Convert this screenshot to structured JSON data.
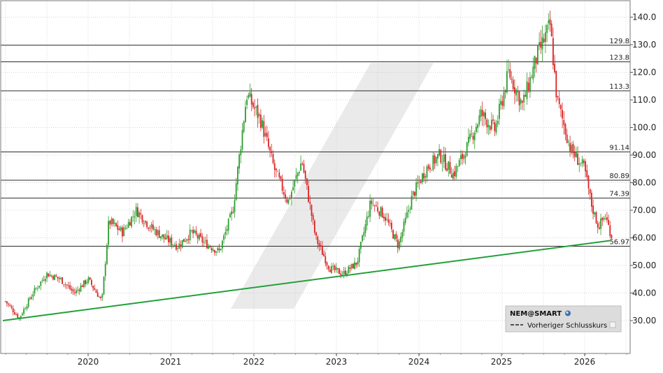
{
  "chart_data": {
    "type": "candlestick",
    "symbol": "NEM@SMART",
    "legend": {
      "title": "NEM@SMART",
      "entries": [
        "Vorheriger Schlusskurs"
      ]
    },
    "x_axis": {
      "ticks": [
        "2020",
        "2021",
        "2022",
        "2023",
        "2024",
        "2025",
        "2026"
      ]
    },
    "y_axis": {
      "range": [
        20,
        142
      ],
      "ticks": [
        "30.00",
        "40.00",
        "50.00",
        "60.00",
        "70.00",
        "80.00",
        "90.00",
        "100.0",
        "110.0",
        "120.0",
        "130.0",
        "140.0"
      ],
      "tick_values": [
        30,
        40,
        50,
        60,
        70,
        80,
        90,
        100,
        110,
        120,
        130,
        140
      ]
    },
    "horizontal_levels": [
      {
        "value": 129.8,
        "label": "129.8"
      },
      {
        "value": 123.8,
        "label": "123.8"
      },
      {
        "value": 113.3,
        "label": "113.3"
      },
      {
        "value": 91.14,
        "label": "91.14"
      },
      {
        "value": 80.89,
        "label": "80.89"
      },
      {
        "value": 74.39,
        "label": "74.39"
      },
      {
        "value": 56.97,
        "label": "56.97"
      }
    ],
    "trendline": {
      "start": {
        "date": "2019-01",
        "value": 30
      },
      "end": {
        "date": "2026-05",
        "value": 59
      }
    },
    "price_path": [
      [
        "2019-01",
        37
      ],
      [
        "2019-03",
        31
      ],
      [
        "2019-05",
        40
      ],
      [
        "2019-07",
        47
      ],
      [
        "2019-09",
        45
      ],
      [
        "2019-11",
        40
      ],
      [
        "2020-01",
        45
      ],
      [
        "2020-03",
        37
      ],
      [
        "2020-04",
        66
      ],
      [
        "2020-06",
        62
      ],
      [
        "2020-08",
        70
      ],
      [
        "2020-10",
        64
      ],
      [
        "2020-12",
        60
      ],
      [
        "2021-02",
        57
      ],
      [
        "2021-04",
        62
      ],
      [
        "2021-06",
        58
      ],
      [
        "2021-08",
        55
      ],
      [
        "2021-10",
        70
      ],
      [
        "2021-12",
        112
      ],
      [
        "2022-02",
        103
      ],
      [
        "2022-04",
        85
      ],
      [
        "2022-06",
        73
      ],
      [
        "2022-08",
        88
      ],
      [
        "2022-10",
        60
      ],
      [
        "2022-12",
        49
      ],
      [
        "2023-02",
        47
      ],
      [
        "2023-04",
        51
      ],
      [
        "2023-06",
        73
      ],
      [
        "2023-08",
        68
      ],
      [
        "2023-10",
        57
      ],
      [
        "2023-12",
        75
      ],
      [
        "2024-02",
        85
      ],
      [
        "2024-04",
        90
      ],
      [
        "2024-06",
        83
      ],
      [
        "2024-08",
        93
      ],
      [
        "2024-10",
        105
      ],
      [
        "2024-12",
        99
      ],
      [
        "2025-02",
        120
      ],
      [
        "2025-04",
        108
      ],
      [
        "2025-06",
        125
      ],
      [
        "2025-08",
        137
      ],
      [
        "2025-09",
        110
      ],
      [
        "2025-11",
        92
      ],
      [
        "2026-01",
        85
      ],
      [
        "2026-02",
        72
      ],
      [
        "2026-03",
        64
      ],
      [
        "2026-04",
        68
      ],
      [
        "2026-05",
        60
      ]
    ],
    "colors": {
      "up": "#2e9c2e",
      "down": "#d92424",
      "trendline": "#22a03a",
      "level_line": "#2b2b2b",
      "grid": "#c8c8c8"
    },
    "grid": true,
    "legend_position": "bottom-right"
  }
}
